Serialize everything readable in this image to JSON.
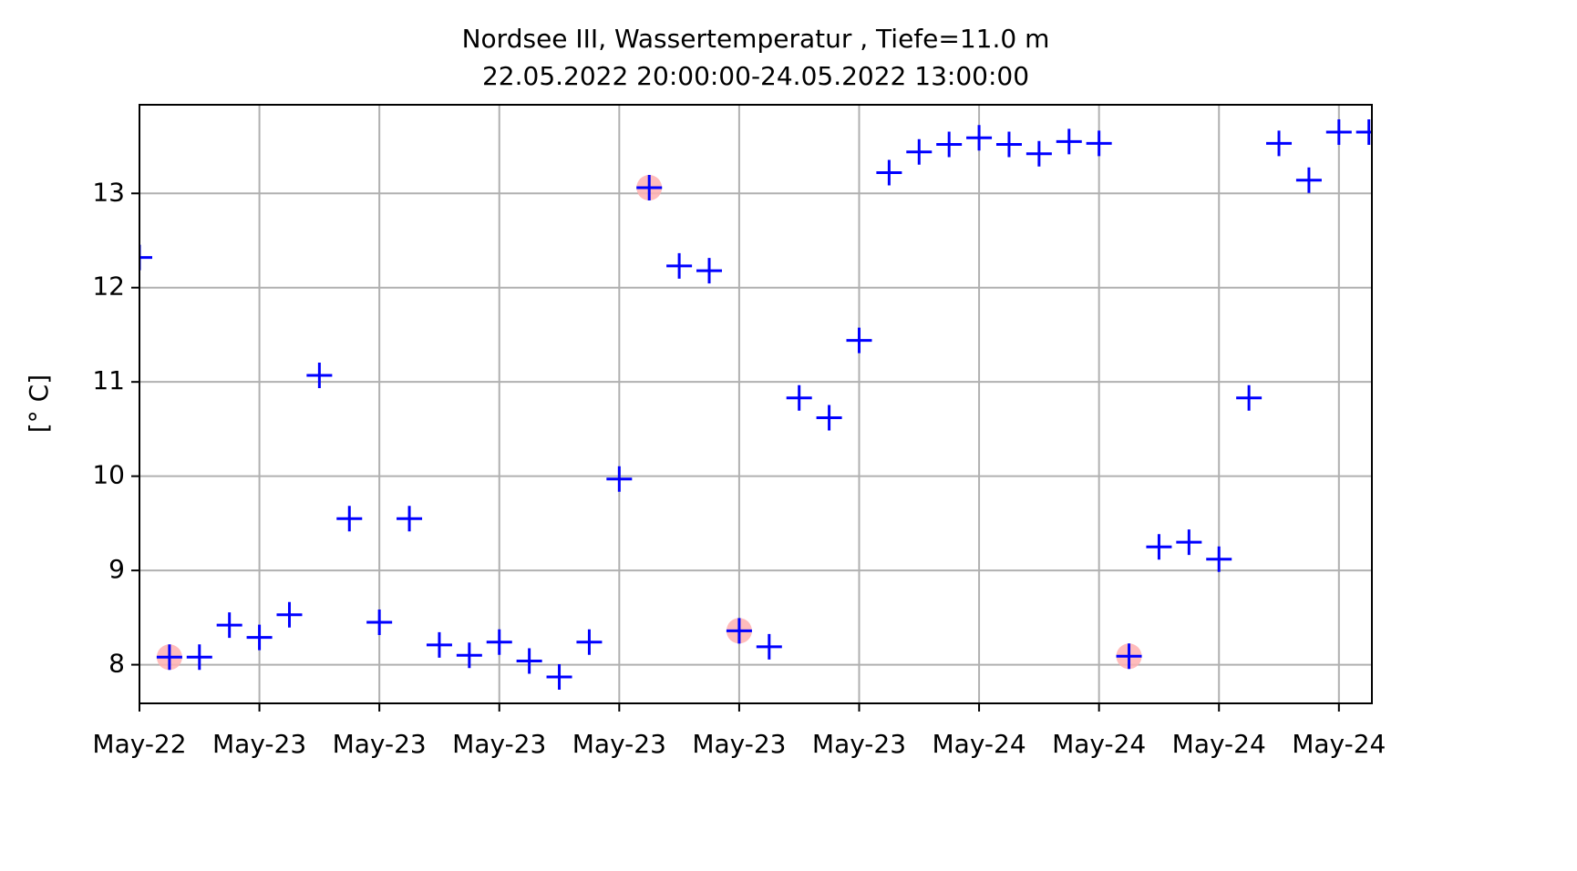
{
  "chart_data": {
    "type": "scatter",
    "title": "Nordsee III, Wassertemperatur , Tiefe=11.0 m",
    "subtitle": "22.05.2022 20:00:00-24.05.2022 13:00:00",
    "y_label": "[° C]",
    "x": [
      0,
      1,
      2,
      3,
      4,
      5,
      6,
      7,
      8,
      9,
      10,
      11,
      12,
      13,
      14,
      15,
      16,
      17,
      18,
      19,
      20,
      21,
      22,
      23,
      24,
      25,
      26,
      27,
      28,
      29,
      30,
      31,
      32,
      33,
      34,
      35,
      36,
      37,
      38,
      39,
      40,
      41
    ],
    "series": [
      {
        "color": "#0000ff",
        "marker": "plus",
        "values": [
          12.32,
          8.08,
          8.08,
          8.42,
          8.29,
          8.53,
          11.07,
          9.55,
          8.45,
          9.55,
          8.21,
          8.1,
          8.24,
          8.04,
          7.87,
          8.24,
          9.97,
          13.06,
          12.23,
          12.18,
          8.36,
          8.19,
          10.83,
          10.62,
          11.44,
          13.22,
          13.44,
          13.52,
          13.59,
          13.52,
          13.42,
          13.55,
          13.53,
          8.09,
          9.25,
          9.3,
          9.12,
          10.83,
          13.53,
          13.14,
          13.65,
          13.65
        ]
      },
      {
        "color": "#ffb0b0",
        "marker": "circle",
        "values": [
          null,
          8.08,
          null,
          null,
          null,
          null,
          null,
          null,
          null,
          null,
          null,
          null,
          null,
          null,
          null,
          null,
          null,
          13.06,
          null,
          null,
          8.36,
          null,
          null,
          null,
          null,
          null,
          null,
          null,
          null,
          null,
          null,
          null,
          null,
          8.09,
          null,
          null,
          null,
          null,
          null,
          null,
          null,
          null
        ]
      }
    ],
    "xlim": [
      0,
      41.1
    ],
    "xticks": [
      {
        "value": 0,
        "label": "May-22"
      },
      {
        "value": 4,
        "label": "May-23"
      },
      {
        "value": 8,
        "label": "May-23"
      },
      {
        "value": 12,
        "label": "May-23"
      },
      {
        "value": 16,
        "label": "May-23"
      },
      {
        "value": 20,
        "label": "May-23"
      },
      {
        "value": 24,
        "label": "May-23"
      },
      {
        "value": 28,
        "label": "May-24"
      },
      {
        "value": 32,
        "label": "May-24"
      },
      {
        "value": 36,
        "label": "May-24"
      },
      {
        "value": 40,
        "label": "May-24"
      }
    ],
    "ylim": [
      7.59,
      13.94
    ],
    "yticks": [
      8,
      9,
      10,
      11,
      12,
      13
    ],
    "grid": true
  }
}
